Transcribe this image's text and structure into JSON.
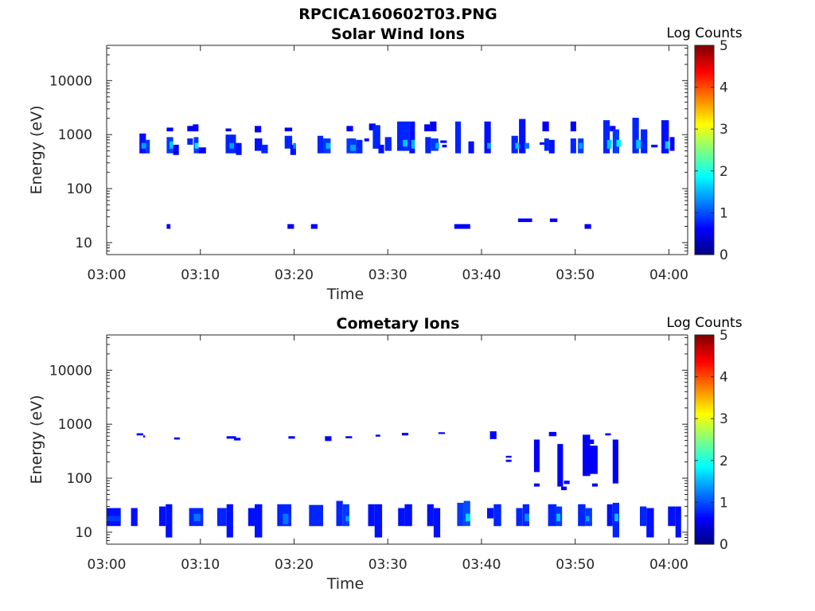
{
  "figure": {
    "filename": "RPCICA160602T03.PNG"
  },
  "chart_data": [
    {
      "type": "heatmap",
      "title": "Solar Wind Ions",
      "xlabel": "Time",
      "ylabel": "Energy (eV)",
      "x_ticks": [
        "03:00",
        "03:10",
        "03:20",
        "03:30",
        "03:40",
        "03:50",
        "04:00"
      ],
      "x_range_minutes": [
        0,
        62
      ],
      "y_scale": "log",
      "y_range": [
        6,
        45000
      ],
      "y_ticks": [
        10,
        100,
        1000,
        10000
      ],
      "colorbar": {
        "label": "Log Counts",
        "range": [
          0,
          5
        ],
        "ticks": [
          0,
          1,
          2,
          3,
          4,
          5
        ],
        "colormap": "jet"
      },
      "cells": [
        [
          3.5,
          4.2,
          450,
          1050,
          0.7
        ],
        [
          3.7,
          4.2,
          550,
          700,
          1.4
        ],
        [
          4.2,
          4.6,
          450,
          800,
          0.9
        ],
        [
          6.4,
          7.1,
          1150,
          1350,
          0.6
        ],
        [
          6.4,
          7.1,
          450,
          900,
          0.9
        ],
        [
          6.7,
          7.1,
          550,
          750,
          1.6
        ],
        [
          7.1,
          7.7,
          420,
          650,
          0.6
        ],
        [
          8.6,
          9.3,
          1150,
          1450,
          0.6
        ],
        [
          8.6,
          9.2,
          650,
          850,
          0.8
        ],
        [
          9.2,
          9.8,
          1150,
          1550,
          0.6
        ],
        [
          9.3,
          9.8,
          450,
          900,
          0.9
        ],
        [
          9.4,
          9.8,
          550,
          700,
          1.8
        ],
        [
          9.8,
          10.6,
          450,
          580,
          0.6
        ],
        [
          12.7,
          13.3,
          1150,
          1300,
          0.6
        ],
        [
          12.7,
          13.8,
          450,
          1000,
          0.8
        ],
        [
          13.1,
          13.6,
          550,
          700,
          1.4
        ],
        [
          13.8,
          14.4,
          420,
          700,
          0.7
        ],
        [
          15.8,
          16.5,
          1100,
          1450,
          0.6
        ],
        [
          15.8,
          16.6,
          500,
          850,
          0.7
        ],
        [
          16.5,
          17.2,
          450,
          650,
          0.8
        ],
        [
          19.0,
          19.8,
          1150,
          1350,
          0.6
        ],
        [
          19.0,
          19.8,
          550,
          950,
          0.8
        ],
        [
          19.6,
          20.2,
          420,
          650,
          0.7
        ],
        [
          19.9,
          20.2,
          550,
          700,
          1.3
        ],
        [
          22.5,
          23.1,
          450,
          950,
          0.8
        ],
        [
          23.1,
          23.9,
          450,
          850,
          0.9
        ],
        [
          23.4,
          23.9,
          550,
          700,
          1.5
        ],
        [
          25.6,
          26.3,
          1150,
          1450,
          0.6
        ],
        [
          25.6,
          26.6,
          450,
          850,
          0.9
        ],
        [
          26.0,
          26.8,
          500,
          650,
          1.4
        ],
        [
          26.6,
          27.3,
          450,
          800,
          0.8
        ],
        [
          27.5,
          28.0,
          750,
          850,
          0.6
        ],
        [
          28.0,
          28.7,
          1200,
          1600,
          0.6
        ],
        [
          28.4,
          29.2,
          550,
          1500,
          0.8
        ],
        [
          29.0,
          29.6,
          450,
          650,
          0.7
        ],
        [
          29.7,
          30.4,
          500,
          900,
          0.8
        ],
        [
          31.0,
          32.3,
          500,
          1750,
          0.8
        ],
        [
          31.6,
          32.1,
          600,
          800,
          1.6
        ],
        [
          32.3,
          32.9,
          450,
          1750,
          0.7
        ],
        [
          32.5,
          32.9,
          550,
          800,
          1.5
        ],
        [
          33.9,
          34.5,
          1150,
          1550,
          0.6
        ],
        [
          34.0,
          34.6,
          450,
          900,
          0.8
        ],
        [
          34.5,
          35.2,
          1150,
          1750,
          0.6
        ],
        [
          34.6,
          35.4,
          500,
          850,
          0.9
        ],
        [
          35.1,
          35.5,
          550,
          700,
          1.5
        ],
        [
          35.6,
          36.3,
          700,
          780,
          0.6
        ],
        [
          35.8,
          36.3,
          580,
          650,
          0.7
        ],
        [
          37.2,
          37.8,
          450,
          1750,
          0.8
        ],
        [
          38.6,
          39.2,
          450,
          750,
          0.7
        ],
        [
          40.3,
          41.0,
          450,
          1750,
          0.7
        ],
        [
          40.6,
          41.0,
          550,
          700,
          1.4
        ],
        [
          43.2,
          43.9,
          450,
          950,
          0.8
        ],
        [
          43.6,
          44.0,
          550,
          700,
          1.6
        ],
        [
          44.0,
          44.7,
          450,
          1950,
          0.7
        ],
        [
          44.6,
          45.1,
          550,
          700,
          1.2
        ],
        [
          46.2,
          46.9,
          650,
          720,
          0.6
        ],
        [
          46.5,
          47.2,
          1150,
          1750,
          0.6
        ],
        [
          46.7,
          47.2,
          500,
          850,
          0.8
        ],
        [
          47.2,
          47.8,
          450,
          800,
          0.7
        ],
        [
          49.5,
          50.1,
          1150,
          1750,
          0.6
        ],
        [
          49.5,
          50.1,
          450,
          850,
          0.8
        ],
        [
          50.3,
          50.9,
          450,
          850,
          0.9
        ],
        [
          50.4,
          50.8,
          550,
          700,
          1.4
        ],
        [
          53.0,
          53.7,
          450,
          1850,
          0.8
        ],
        [
          53.4,
          53.9,
          550,
          800,
          1.6
        ],
        [
          53.7,
          54.3,
          1150,
          1450,
          0.6
        ],
        [
          54.0,
          54.7,
          450,
          1250,
          0.9
        ],
        [
          54.4,
          54.9,
          600,
          800,
          1.8
        ],
        [
          56.1,
          56.8,
          450,
          2050,
          0.8
        ],
        [
          56.5,
          57.0,
          550,
          800,
          1.6
        ],
        [
          57.0,
          57.7,
          450,
          1250,
          0.8
        ],
        [
          58.1,
          58.8,
          580,
          650,
          0.7
        ],
        [
          59.2,
          60.0,
          450,
          1850,
          0.7
        ],
        [
          59.6,
          60.0,
          550,
          750,
          1.6
        ],
        [
          60.1,
          60.6,
          500,
          900,
          0.6
        ],
        [
          6.4,
          6.8,
          18,
          22,
          0.6
        ],
        [
          19.3,
          20.0,
          18,
          22,
          0.6
        ],
        [
          21.8,
          22.5,
          18,
          22,
          0.6
        ],
        [
          37.1,
          38.8,
          18,
          22,
          0.6
        ],
        [
          43.9,
          45.4,
          24,
          28,
          0.6
        ],
        [
          47.3,
          48.1,
          24,
          28,
          0.6
        ],
        [
          51.0,
          51.7,
          18,
          22,
          0.6
        ]
      ]
    },
    {
      "type": "heatmap",
      "title": "Cometary Ions",
      "xlabel": "Time",
      "ylabel": "Energy (eV)",
      "x_ticks": [
        "03:00",
        "03:10",
        "03:20",
        "03:30",
        "03:40",
        "03:50",
        "04:00"
      ],
      "x_range_minutes": [
        0,
        62
      ],
      "y_scale": "log",
      "y_range": [
        6,
        45000
      ],
      "y_ticks": [
        10,
        100,
        1000,
        10000
      ],
      "colorbar": {
        "label": "Log Counts",
        "range": [
          0,
          5
        ],
        "ticks": [
          0,
          1,
          2,
          3,
          4,
          5
        ],
        "colormap": "jet"
      },
      "cells": [
        [
          3.2,
          3.9,
          620,
          680,
          0.6
        ],
        [
          3.9,
          4.1,
          570,
          620,
          0.6
        ],
        [
          7.2,
          7.8,
          520,
          570,
          0.6
        ],
        [
          12.8,
          13.8,
          540,
          600,
          0.6
        ],
        [
          13.6,
          14.3,
          500,
          560,
          0.6
        ],
        [
          19.4,
          20.1,
          540,
          600,
          0.6
        ],
        [
          23.3,
          24.0,
          490,
          600,
          0.6
        ],
        [
          25.5,
          26.2,
          550,
          600,
          0.6
        ],
        [
          28.7,
          29.2,
          590,
          640,
          0.6
        ],
        [
          31.5,
          32.2,
          620,
          690,
          0.6
        ],
        [
          35.4,
          36.1,
          660,
          710,
          0.6
        ],
        [
          40.9,
          41.6,
          530,
          740,
          0.6
        ],
        [
          42.6,
          43.2,
          240,
          260,
          0.6
        ],
        [
          42.6,
          43.2,
          200,
          220,
          0.6
        ],
        [
          45.6,
          46.2,
          130,
          520,
          0.6
        ],
        [
          45.6,
          46.2,
          70,
          80,
          0.6
        ],
        [
          47.2,
          48.0,
          600,
          720,
          0.6
        ],
        [
          48.1,
          48.7,
          70,
          430,
          0.6
        ],
        [
          48.5,
          49.1,
          60,
          70,
          0.6
        ],
        [
          48.8,
          49.4,
          78,
          90,
          0.6
        ],
        [
          50.8,
          51.6,
          110,
          640,
          0.6
        ],
        [
          51.4,
          52.0,
          430,
          520,
          0.6
        ],
        [
          51.6,
          52.4,
          120,
          400,
          0.6
        ],
        [
          51.8,
          52.4,
          70,
          80,
          0.6
        ],
        [
          53.2,
          53.8,
          620,
          680,
          0.6
        ],
        [
          54.0,
          54.6,
          80,
          520,
          0.6
        ],
        [
          0.0,
          1.5,
          13,
          28,
          0.7
        ],
        [
          0.0,
          1.5,
          16,
          20,
          0.9
        ],
        [
          2.6,
          3.3,
          13,
          28,
          0.7
        ],
        [
          5.6,
          6.3,
          13,
          30,
          0.7
        ],
        [
          6.3,
          7.0,
          8,
          33,
          0.7
        ],
        [
          8.8,
          10.3,
          13,
          28,
          0.8
        ],
        [
          9.3,
          10.0,
          16,
          22,
          1.2
        ],
        [
          11.8,
          12.8,
          13,
          28,
          0.8
        ],
        [
          12.8,
          13.5,
          8,
          33,
          0.7
        ],
        [
          15.1,
          15.8,
          13,
          28,
          0.7
        ],
        [
          15.8,
          16.6,
          8,
          33,
          0.7
        ],
        [
          18.2,
          19.7,
          13,
          33,
          0.8
        ],
        [
          18.8,
          19.4,
          14,
          22,
          1.2
        ],
        [
          21.6,
          23.1,
          13,
          32,
          0.8
        ],
        [
          24.5,
          25.2,
          13,
          38,
          0.8
        ],
        [
          25.2,
          25.9,
          13,
          33,
          0.9
        ],
        [
          25.5,
          25.9,
          16,
          20,
          1.4
        ],
        [
          27.9,
          28.6,
          13,
          33,
          0.7
        ],
        [
          28.6,
          29.4,
          8,
          33,
          0.7
        ],
        [
          31.1,
          31.8,
          13,
          28,
          0.7
        ],
        [
          31.8,
          32.6,
          13,
          33,
          0.7
        ],
        [
          34.2,
          34.9,
          13,
          33,
          0.7
        ],
        [
          34.9,
          35.6,
          8,
          28,
          0.7
        ],
        [
          37.4,
          38.1,
          13,
          35,
          0.9
        ],
        [
          38.1,
          38.8,
          13,
          38,
          1.0
        ],
        [
          38.3,
          38.8,
          16,
          22,
          1.7
        ],
        [
          40.6,
          41.3,
          18,
          28,
          0.7
        ],
        [
          41.3,
          42.1,
          13,
          33,
          0.8
        ],
        [
          43.7,
          44.4,
          13,
          28,
          0.8
        ],
        [
          44.4,
          45.1,
          13,
          33,
          0.8
        ],
        [
          44.6,
          45.1,
          16,
          22,
          1.3
        ],
        [
          47.1,
          48.0,
          13,
          33,
          0.8
        ],
        [
          47.9,
          48.6,
          13,
          30,
          0.9
        ],
        [
          48.0,
          48.4,
          16,
          22,
          1.6
        ],
        [
          50.3,
          51.1,
          13,
          33,
          0.8
        ],
        [
          51.1,
          51.8,
          13,
          28,
          0.9
        ],
        [
          51.1,
          51.5,
          16,
          20,
          1.4
        ],
        [
          53.4,
          54.0,
          13,
          33,
          0.7
        ],
        [
          54.0,
          54.7,
          8,
          35,
          0.8
        ],
        [
          54.2,
          54.6,
          16,
          22,
          1.6
        ],
        [
          56.9,
          57.6,
          13,
          30,
          0.8
        ],
        [
          57.6,
          58.4,
          8,
          28,
          0.7
        ],
        [
          59.9,
          60.7,
          13,
          30,
          0.7
        ],
        [
          60.7,
          61.3,
          8,
          30,
          0.7
        ]
      ]
    }
  ]
}
